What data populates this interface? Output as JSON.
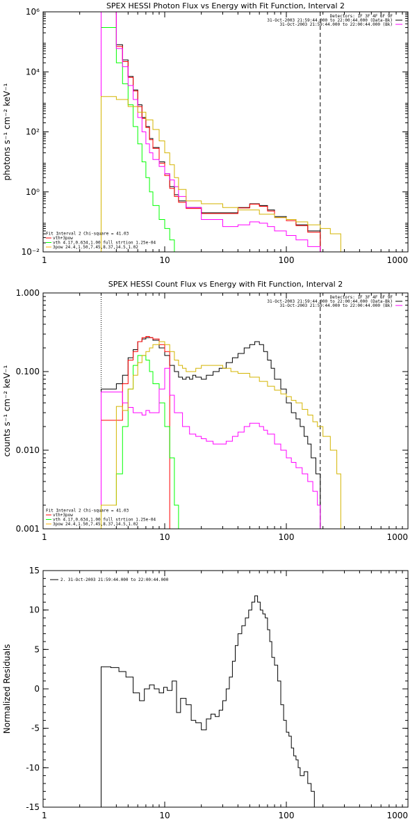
{
  "chart_data": [
    {
      "type": "line",
      "title": "SPEX HESSI Photon Flux vs Energy with Fit Function, Interval 2",
      "xlabel": "",
      "ylabel": "photons s⁻¹ cm⁻² keV⁻¹",
      "xscale": "log",
      "yscale": "log",
      "xlim": [
        1,
        1000
      ],
      "ylim": [
        0.01,
        1000000
      ],
      "x_ticks": [
        "1",
        "10",
        "100",
        "1000"
      ],
      "y_ticks": [
        {
          "value": 0.01,
          "label": "10⁻²"
        },
        {
          "value": 1,
          "label": "10⁰"
        },
        {
          "value": 100,
          "label": "10²"
        },
        {
          "value": 10000,
          "label": "10⁴"
        },
        {
          "value": 1000000,
          "label": "10⁶"
        }
      ],
      "vlines": [
        {
          "x": 3,
          "style": "dotted",
          "color": "#000000"
        },
        {
          "x": 190,
          "style": "dashed",
          "color": "#000000"
        }
      ],
      "legend_top_right": [
        {
          "text": "Detectors: 1F 3F 4F 6F 9F",
          "color": null
        },
        {
          "text": "31-Oct-2003 21:59:44.000 to 22:00:44.000 (Data-Bk)",
          "color": "#000000"
        },
        {
          "text": "31-Oct-2003 21:59:44.000 to 22:00:44.000 (Bk)",
          "color": "#ff00ff"
        }
      ],
      "legend_bottom_left": [
        {
          "text": "Fit Interval 2   Chi-square = 41.03",
          "color": null
        },
        {
          "text": "vth+3pow",
          "color": "#ff0000"
        },
        {
          "text": "vth 4.17,0.634,1.00  full strtion 1.25e-04",
          "color": "#00ff00"
        },
        {
          "text": "3pow 24.4,1.50,7.45,8.37,14.5,1.02",
          "color": "#ffb000"
        }
      ],
      "series": [
        {
          "color": "#000000",
          "step": true,
          "x": [
            3,
            3.5,
            4,
            4.5,
            5,
            5.5,
            6,
            6.5,
            7,
            7.5,
            8,
            9,
            10,
            11,
            12,
            13,
            15,
            20,
            30,
            40,
            50,
            60,
            70,
            80,
            100,
            120,
            150,
            190
          ],
          "y": [
            1000000,
            1000000,
            80000,
            25000,
            7000,
            2500,
            800,
            300,
            150,
            60,
            30,
            10,
            4,
            1.5,
            0.8,
            0.5,
            0.3,
            0.2,
            0.2,
            0.3,
            0.4,
            0.35,
            0.25,
            0.15,
            0.12,
            0.08,
            0.05,
            0.01
          ]
        },
        {
          "color": "#ff0000",
          "step": true,
          "x": [
            3,
            3.5,
            4,
            4.5,
            5,
            5.5,
            6,
            6.5,
            7,
            7.5,
            8,
            9,
            10,
            11,
            12,
            13,
            15,
            20,
            30,
            40,
            50,
            60,
            70,
            80,
            100,
            120,
            150,
            190
          ],
          "y": [
            1000000,
            1000000,
            70000,
            22000,
            6500,
            2300,
            700,
            280,
            140,
            55,
            28,
            9,
            3.5,
            1.3,
            0.7,
            0.45,
            0.28,
            0.19,
            0.19,
            0.29,
            0.39,
            0.33,
            0.23,
            0.14,
            0.11,
            0.075,
            0.045,
            0.01
          ]
        },
        {
          "color": "#00ff00",
          "step": true,
          "x": [
            3,
            3.5,
            4,
            4.5,
            5,
            5.5,
            6,
            6.5,
            7,
            7.5,
            8,
            9,
            10,
            11,
            12,
            13,
            14
          ],
          "y": [
            300000,
            300000,
            20000,
            4000,
            800,
            150,
            40,
            10,
            3,
            1,
            0.35,
            0.12,
            0.06,
            0.025,
            0.01,
            0.01,
            0.01
          ]
        },
        {
          "color": "#ff00ff",
          "step": true,
          "x": [
            3,
            3.5,
            4,
            4.5,
            5,
            5.5,
            6,
            6.5,
            7,
            7.5,
            8,
            9,
            10,
            11,
            12,
            13,
            15,
            20,
            30,
            40,
            50,
            60,
            70,
            80,
            100,
            120,
            150,
            190
          ],
          "y": [
            1000000,
            1000000,
            60000,
            15000,
            3500,
            1200,
            300,
            100,
            40,
            20,
            12,
            7,
            4,
            2.5,
            1.5,
            0.7,
            0.3,
            0.12,
            0.07,
            0.08,
            0.1,
            0.09,
            0.07,
            0.05,
            0.035,
            0.025,
            0.015,
            0.01
          ]
        },
        {
          "color": "#d4b400",
          "step": true,
          "x": [
            3,
            4,
            5,
            6,
            7,
            8,
            9,
            10,
            11,
            12,
            13,
            15,
            20,
            30,
            40,
            60,
            80,
            100,
            120,
            150,
            190,
            230,
            280
          ],
          "y": [
            1500,
            1200,
            700,
            450,
            250,
            120,
            50,
            20,
            8,
            3,
            1.2,
            0.5,
            0.4,
            0.3,
            0.25,
            0.18,
            0.14,
            0.12,
            0.1,
            0.08,
            0.06,
            0.04,
            0.01
          ]
        }
      ]
    },
    {
      "type": "line",
      "title": "SPEX HESSI Count Flux vs Energy with Fit Function, Interval 2",
      "xlabel": "",
      "ylabel": "counts s⁻¹ cm⁻² keV⁻¹",
      "xscale": "log",
      "yscale": "log",
      "xlim": [
        1,
        1000
      ],
      "ylim": [
        0.001,
        1
      ],
      "x_ticks": [
        "1",
        "10",
        "100",
        "1000"
      ],
      "y_ticks": [
        {
          "value": 0.001,
          "label": "0.001"
        },
        {
          "value": 0.01,
          "label": "0.010"
        },
        {
          "value": 0.1,
          "label": "0.100"
        },
        {
          "value": 1,
          "label": "1.000"
        }
      ],
      "vlines": [
        {
          "x": 3,
          "style": "dotted",
          "color": "#000000"
        },
        {
          "x": 190,
          "style": "dashed",
          "color": "#000000"
        }
      ],
      "legend_top_right": [
        {
          "text": "Detectors: 1F 3F 4F 6F 9F",
          "color": null
        },
        {
          "text": "31-Oct-2003 21:59:44.000 to 22:00:44.000 (Data-Bk)",
          "color": "#000000"
        },
        {
          "text": "31-Oct-2003 21:59:44.000 to 22:00:44.000 (Bk)",
          "color": "#ff00ff"
        }
      ],
      "legend_bottom_left": [
        {
          "text": "Fit Interval 2   Chi-square = 41.03",
          "color": null
        },
        {
          "text": "vth+3pow",
          "color": "#ff0000"
        },
        {
          "text": "vth 4.17,0.634,1.00  full strtion 1.25e-04",
          "color": "#00ff00"
        },
        {
          "text": "3pow 24.4,1.50,7.45,8.37,14.5,1.02",
          "color": "#ffb000"
        }
      ],
      "series": [
        {
          "color": "#000000",
          "step": true,
          "x": [
            3,
            3.5,
            4,
            4.5,
            5,
            5.5,
            6,
            6.5,
            7,
            7.5,
            8,
            9,
            10,
            11,
            12,
            13,
            14,
            15,
            16,
            17,
            18,
            20,
            22,
            25,
            28,
            32,
            36,
            40,
            45,
            50,
            55,
            60,
            65,
            70,
            75,
            80,
            90,
            100,
            110,
            120,
            130,
            140,
            150,
            160,
            175,
            190
          ],
          "y": [
            0.06,
            0.06,
            0.07,
            0.09,
            0.15,
            0.19,
            0.24,
            0.26,
            0.27,
            0.27,
            0.25,
            0.2,
            0.16,
            0.12,
            0.1,
            0.085,
            0.08,
            0.085,
            0.08,
            0.09,
            0.085,
            0.08,
            0.09,
            0.1,
            0.11,
            0.13,
            0.15,
            0.17,
            0.2,
            0.22,
            0.24,
            0.22,
            0.18,
            0.14,
            0.11,
            0.08,
            0.06,
            0.04,
            0.03,
            0.025,
            0.02,
            0.015,
            0.012,
            0.008,
            0.005,
            0.001
          ]
        },
        {
          "color": "#ff0000",
          "step": true,
          "x": [
            3,
            3.5,
            4,
            4.5,
            5,
            5.5,
            6,
            6.5,
            7,
            7.5,
            8,
            9,
            10,
            11
          ],
          "y": [
            0.024,
            0.024,
            0.024,
            0.07,
            0.14,
            0.18,
            0.24,
            0.27,
            0.28,
            0.27,
            0.26,
            0.22,
            0.18,
            0.14
          ]
        },
        {
          "color": "#00ff00",
          "step": true,
          "x": [
            3,
            3.5,
            4,
            4.5,
            5,
            5.5,
            6,
            6.5,
            7,
            7.5,
            8,
            9,
            10,
            11,
            12,
            13,
            14
          ],
          "y": [
            0.002,
            0.002,
            0.005,
            0.02,
            0.06,
            0.12,
            0.16,
            0.16,
            0.14,
            0.1,
            0.07,
            0.04,
            0.02,
            0.008,
            0.002,
            0.001,
            0.001
          ]
        },
        {
          "color": "#ff00ff",
          "step": true,
          "x": [
            3,
            3.5,
            4,
            4.5,
            5,
            5.5,
            6,
            6.5,
            7,
            7.5,
            8,
            9,
            10,
            11,
            12,
            14,
            16,
            18,
            20,
            22,
            25,
            28,
            32,
            36,
            40,
            45,
            50,
            55,
            60,
            65,
            70,
            80,
            90,
            100,
            110,
            120,
            135,
            150,
            165,
            180,
            190
          ],
          "y": [
            0.055,
            0.055,
            0.055,
            0.04,
            0.035,
            0.03,
            0.03,
            0.028,
            0.032,
            0.03,
            0.03,
            0.06,
            0.11,
            0.05,
            0.03,
            0.02,
            0.016,
            0.015,
            0.014,
            0.013,
            0.012,
            0.012,
            0.013,
            0.015,
            0.017,
            0.02,
            0.022,
            0.022,
            0.02,
            0.018,
            0.016,
            0.012,
            0.01,
            0.008,
            0.007,
            0.006,
            0.005,
            0.004,
            0.003,
            0.002,
            0.001
          ]
        },
        {
          "color": "#d4b400",
          "step": true,
          "x": [
            3,
            3.5,
            4,
            4.5,
            5,
            5.5,
            6,
            6.5,
            7,
            7.5,
            8,
            9,
            10,
            11,
            12,
            13,
            14,
            15,
            16,
            18,
            20,
            25,
            30,
            35,
            40,
            50,
            60,
            70,
            80,
            90,
            100,
            110,
            120,
            135,
            150,
            165,
            180,
            200,
            230,
            260,
            280
          ],
          "y": [
            0.002,
            0.002,
            0.036,
            0.032,
            0.06,
            0.09,
            0.13,
            0.16,
            0.18,
            0.2,
            0.22,
            0.24,
            0.22,
            0.18,
            0.14,
            0.12,
            0.11,
            0.1,
            0.1,
            0.11,
            0.12,
            0.12,
            0.11,
            0.1,
            0.095,
            0.085,
            0.075,
            0.065,
            0.058,
            0.052,
            0.048,
            0.043,
            0.04,
            0.033,
            0.028,
            0.023,
            0.02,
            0.015,
            0.01,
            0.005,
            0.001
          ]
        }
      ]
    },
    {
      "type": "line",
      "title": "",
      "xlabel": "",
      "ylabel": "Normalized Residuals",
      "xscale": "log",
      "yscale": "linear",
      "xlim": [
        1,
        1000
      ],
      "ylim": [
        -15,
        15
      ],
      "x_ticks": [
        "1",
        "10",
        "100",
        "1000"
      ],
      "y_ticks": [
        {
          "value": -15,
          "label": "-15"
        },
        {
          "value": -10,
          "label": "-10"
        },
        {
          "value": -5,
          "label": "-5"
        },
        {
          "value": 0,
          "label": "0"
        },
        {
          "value": 5,
          "label": "5"
        },
        {
          "value": 10,
          "label": "10"
        },
        {
          "value": 15,
          "label": "15"
        }
      ],
      "vlines": [],
      "legend_top_left": [
        {
          "text": "2. 31-Oct-2003 21:59:44.000 to 22:00:44.000",
          "color": "#000000"
        }
      ],
      "series": [
        {
          "color": "#000000",
          "step": true,
          "x": [
            3,
            3.6,
            4.2,
            4.8,
            5.5,
            6.2,
            6.8,
            7.5,
            8.2,
            9,
            9.8,
            10.5,
            11.5,
            12.5,
            13.5,
            15,
            16.5,
            18,
            20,
            22,
            24,
            26,
            28,
            30,
            32,
            34,
            36,
            38,
            40,
            43,
            46,
            49,
            52,
            55,
            58,
            61,
            64,
            67,
            70,
            73,
            76,
            80,
            85,
            90,
            95,
            100,
            105,
            110,
            115,
            120,
            125,
            130,
            140,
            150,
            160,
            170,
            180,
            190
          ],
          "y": [
            2.8,
            2.7,
            2.2,
            1.5,
            -0.5,
            -1.5,
            0,
            0.5,
            0,
            -0.5,
            0.2,
            -0.2,
            1,
            -3,
            -1.2,
            -2,
            -4,
            -4.3,
            -5.2,
            -3.8,
            -3.2,
            -3.5,
            -2.7,
            -1.5,
            0,
            1.5,
            3.5,
            5.5,
            7,
            8,
            9,
            10,
            11,
            11.8,
            11,
            10,
            9.5,
            9,
            7.5,
            6,
            4,
            3,
            1,
            -2,
            -4,
            -5.5,
            -6,
            -7.5,
            -8.5,
            -9,
            -10,
            -11,
            -10.5,
            -12,
            -13,
            -15,
            -15,
            -15
          ]
        }
      ]
    }
  ]
}
